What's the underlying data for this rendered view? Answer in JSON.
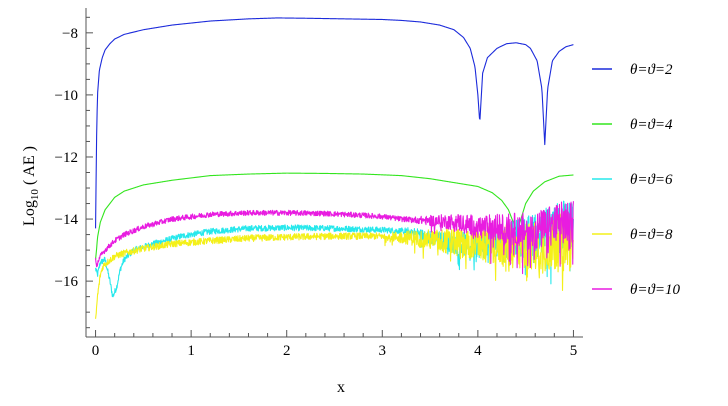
{
  "chart_data": {
    "type": "line",
    "title": "",
    "xlabel": "x",
    "ylabel": "Log10 ( AE )",
    "ylabel_parts": {
      "base": "Log",
      "sub": "10",
      "rest": " ( AE )"
    },
    "xlim": [
      -0.1,
      5.1
    ],
    "ylim": [
      -17.8,
      -7.2
    ],
    "x_ticks": [
      0,
      1,
      2,
      3,
      4,
      5
    ],
    "y_ticks": [
      -16,
      -14,
      -12,
      -10,
      -8
    ],
    "grid": false,
    "legend_position": "right",
    "series": [
      {
        "name": "θ=ϑ=2",
        "color": "#1c2bdb",
        "noise": 0,
        "x": [
          0.0,
          0.01,
          0.02,
          0.04,
          0.07,
          0.1,
          0.15,
          0.2,
          0.3,
          0.5,
          0.8,
          1.2,
          1.6,
          1.9,
          2.2,
          2.6,
          3.0,
          3.2,
          3.4,
          3.6,
          3.75,
          3.85,
          3.92,
          3.97,
          4.0,
          4.02,
          4.05,
          4.1,
          4.2,
          4.3,
          4.4,
          4.5,
          4.55,
          4.62,
          4.67,
          4.7,
          4.73,
          4.78,
          4.85,
          4.92,
          5.0
        ],
        "y": [
          -14.3,
          -11.5,
          -10.0,
          -9.2,
          -8.8,
          -8.55,
          -8.35,
          -8.2,
          -8.05,
          -7.9,
          -7.75,
          -7.62,
          -7.55,
          -7.52,
          -7.53,
          -7.55,
          -7.57,
          -7.6,
          -7.65,
          -7.75,
          -7.9,
          -8.15,
          -8.5,
          -9.1,
          -10.0,
          -10.9,
          -9.3,
          -8.8,
          -8.5,
          -8.35,
          -8.32,
          -8.38,
          -8.5,
          -8.9,
          -9.8,
          -11.6,
          -9.8,
          -8.9,
          -8.6,
          -8.45,
          -8.38
        ]
      },
      {
        "name": "θ=ϑ=4",
        "color": "#33e51e",
        "noise": 0,
        "x": [
          0.0,
          0.01,
          0.02,
          0.05,
          0.1,
          0.2,
          0.3,
          0.5,
          0.8,
          1.2,
          1.6,
          2.0,
          2.4,
          2.8,
          3.2,
          3.5,
          3.8,
          4.0,
          4.15,
          4.25,
          4.32,
          4.37,
          4.41,
          4.45,
          4.5,
          4.58,
          4.7,
          4.85,
          5.0
        ],
        "y": [
          -15.3,
          -15.0,
          -14.6,
          -14.1,
          -13.7,
          -13.3,
          -13.1,
          -12.9,
          -12.75,
          -12.6,
          -12.55,
          -12.52,
          -12.53,
          -12.55,
          -12.6,
          -12.7,
          -12.85,
          -12.95,
          -13.15,
          -13.4,
          -13.7,
          -14.1,
          -14.4,
          -14.0,
          -13.5,
          -13.1,
          -12.8,
          -12.62,
          -12.58
        ]
      },
      {
        "name": "θ=ϑ=6",
        "color": "#27e8ec",
        "noise": 0.8,
        "x": [
          0.0,
          0.02,
          0.05,
          0.1,
          0.15,
          0.18,
          0.22,
          0.26,
          0.3,
          0.4,
          0.6,
          0.9,
          1.2,
          1.6,
          2.0,
          2.5,
          3.0,
          3.3,
          3.5,
          3.8,
          4.0,
          4.3,
          4.6,
          4.8,
          5.0
        ],
        "y": [
          -15.6,
          -15.8,
          -15.4,
          -15.3,
          -16.0,
          -16.5,
          -16.2,
          -15.6,
          -15.3,
          -15.0,
          -14.8,
          -14.55,
          -14.4,
          -14.3,
          -14.28,
          -14.3,
          -14.35,
          -14.4,
          -14.6,
          -14.8,
          -14.8,
          -14.7,
          -14.5,
          -14.3,
          -14.2
        ],
        "noise_start": 3.2
      },
      {
        "name": "θ=ϑ=8",
        "color": "#f4f01a",
        "noise": 0.9,
        "x": [
          0.0,
          0.02,
          0.05,
          0.08,
          0.12,
          0.2,
          0.3,
          0.5,
          0.8,
          1.2,
          1.6,
          2.0,
          2.5,
          3.0,
          3.3,
          3.6,
          4.0,
          4.4,
          4.8,
          5.0
        ],
        "y": [
          -17.3,
          -16.5,
          -15.8,
          -15.5,
          -15.4,
          -15.2,
          -15.1,
          -14.95,
          -14.8,
          -14.7,
          -14.62,
          -14.58,
          -14.55,
          -14.55,
          -14.6,
          -14.7,
          -14.8,
          -14.9,
          -14.8,
          -14.7
        ],
        "noise_start": 3.0
      },
      {
        "name": "θ=ϑ=10",
        "color": "#e81ce0",
        "noise": 0.7,
        "x": [
          0.0,
          0.01,
          0.02,
          0.05,
          0.1,
          0.2,
          0.3,
          0.5,
          0.8,
          1.2,
          1.6,
          2.0,
          2.4,
          2.8,
          3.0,
          3.2,
          3.5,
          3.8,
          4.0,
          4.3,
          4.6,
          4.8,
          5.0
        ],
        "y": [
          -15.3,
          -15.6,
          -15.4,
          -15.2,
          -15.0,
          -14.7,
          -14.5,
          -14.25,
          -14.0,
          -13.85,
          -13.8,
          -13.8,
          -13.82,
          -13.88,
          -13.92,
          -14.0,
          -14.05,
          -14.1,
          -14.25,
          -14.3,
          -14.4,
          -14.2,
          -14.1
        ],
        "noise_start": 3.3
      }
    ]
  }
}
